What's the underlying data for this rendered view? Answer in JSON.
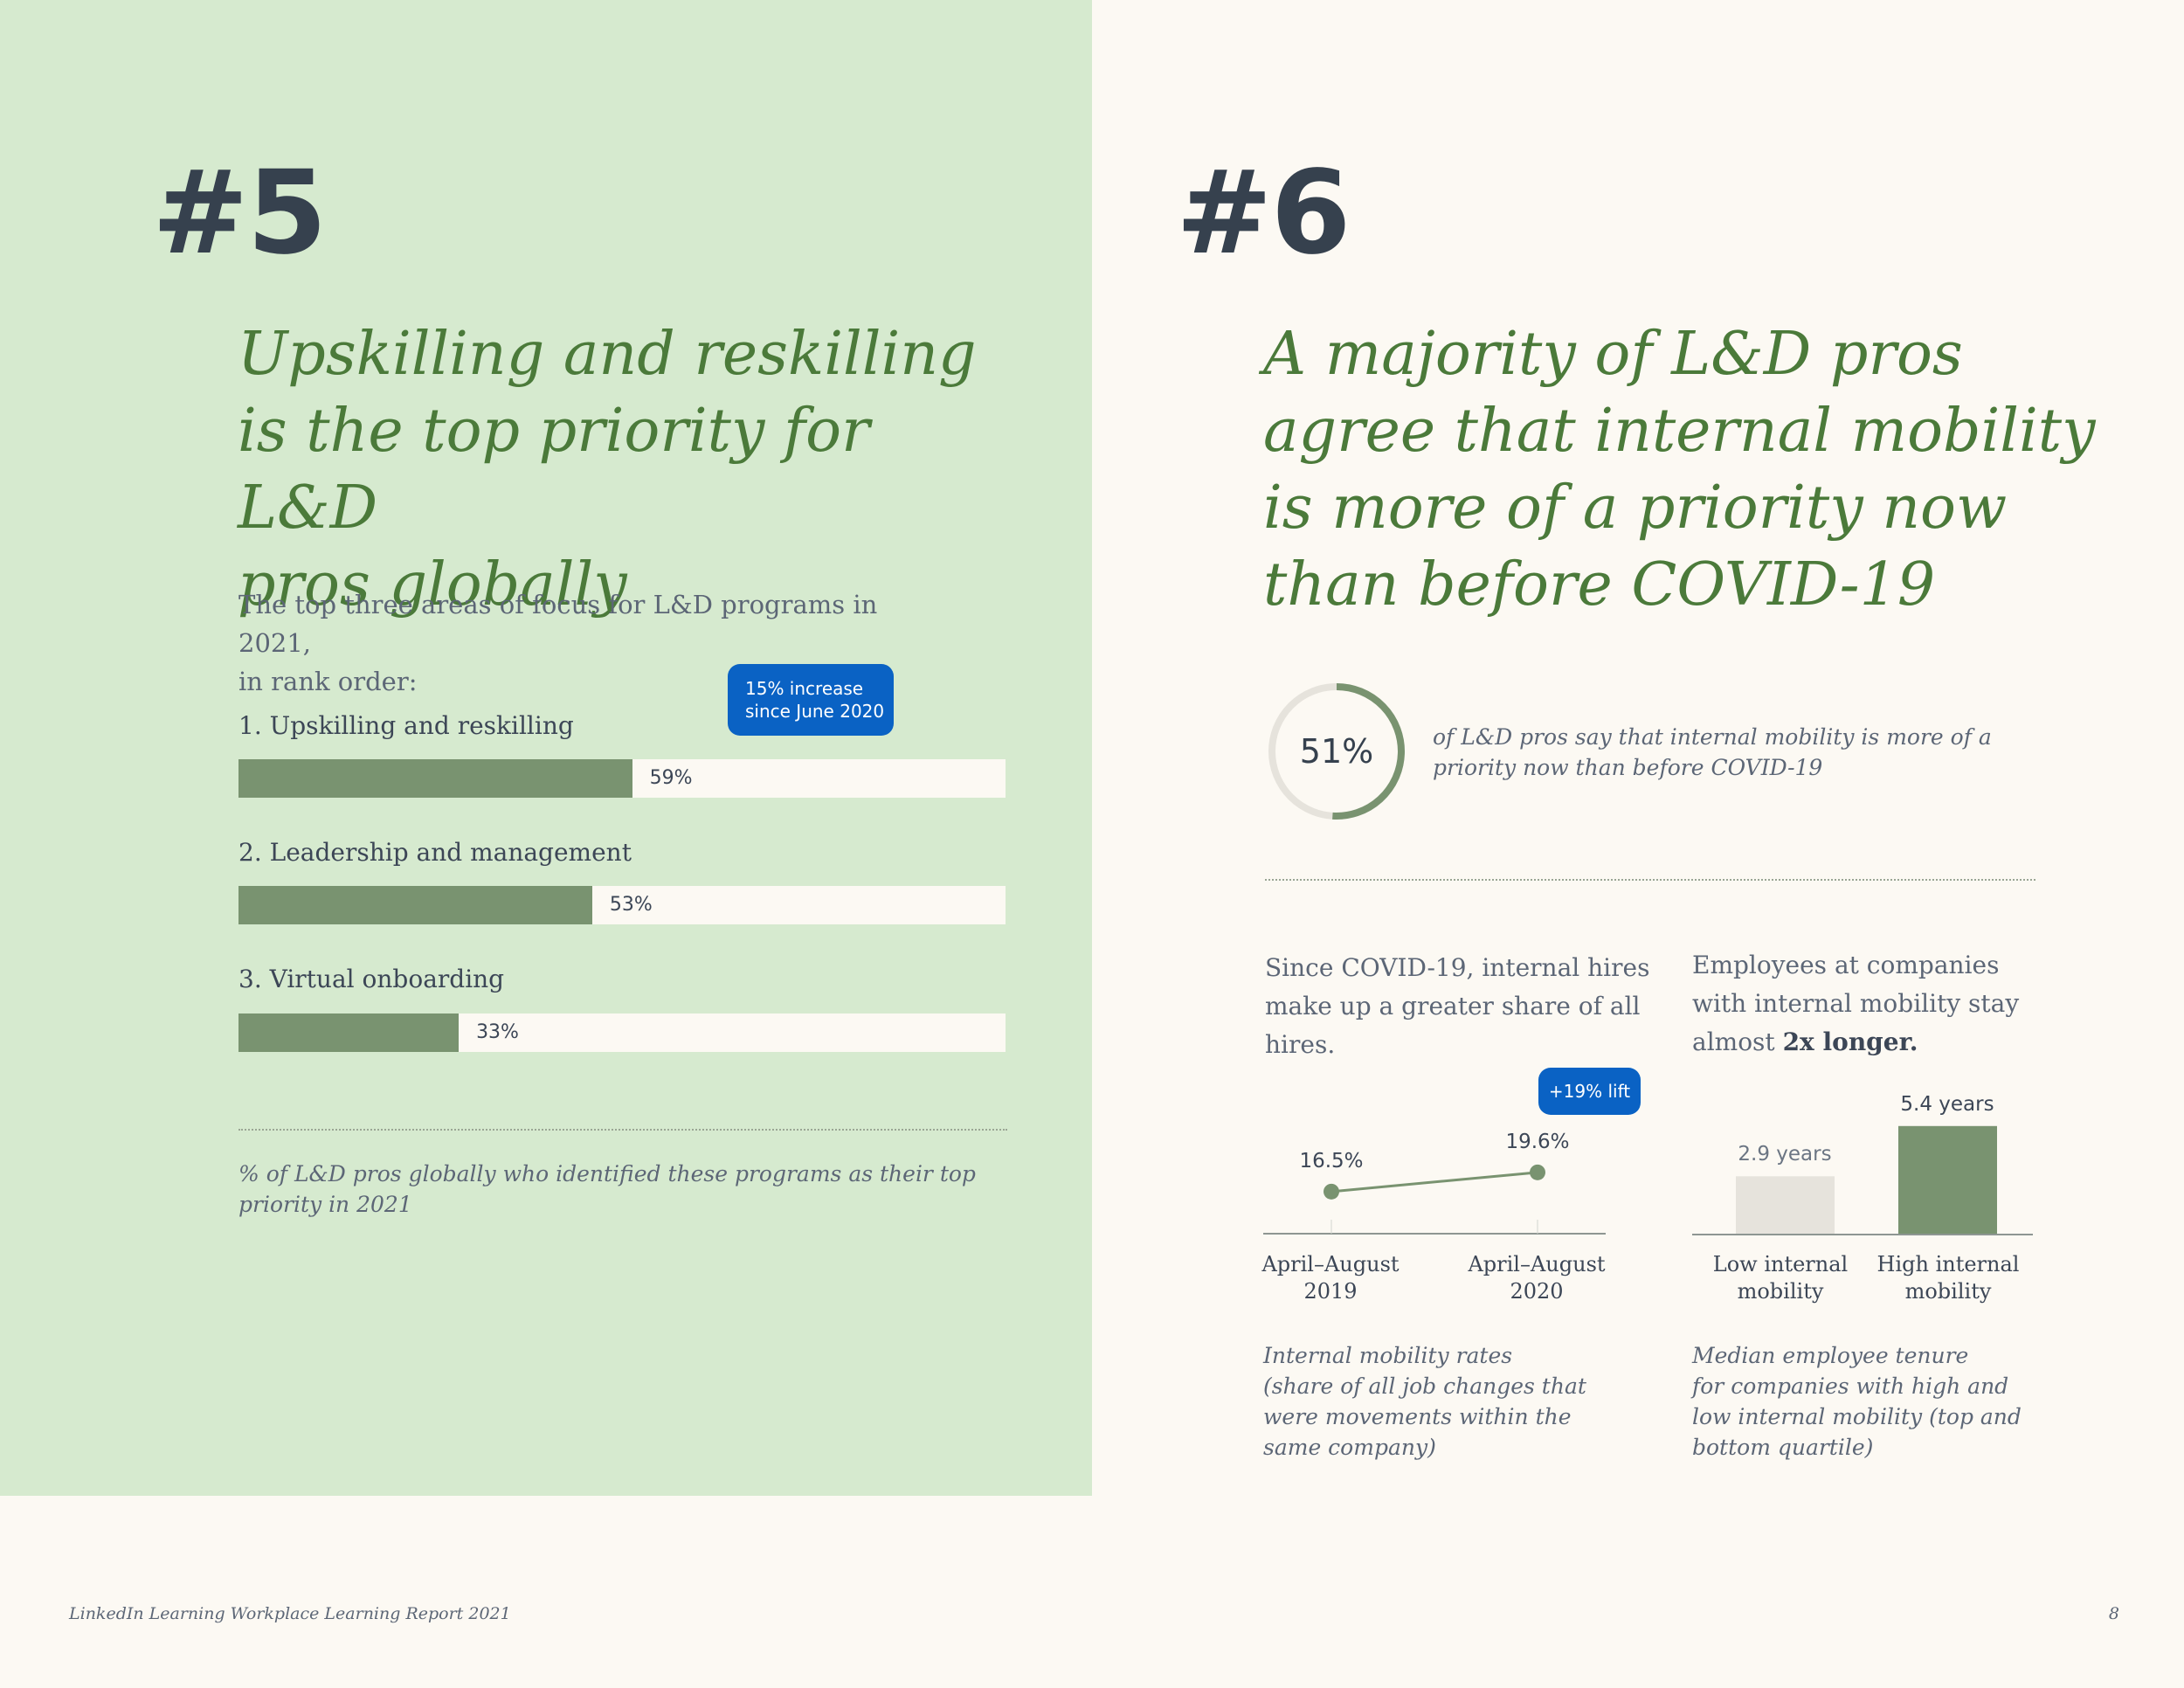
{
  "left": {
    "number": "#5",
    "headline": [
      "Upskilling and reskilling",
      "is the top priority for L&D",
      "pros globally"
    ],
    "intro": [
      "The top three areas of focus for L&D programs in 2021,",
      "in rank order:"
    ],
    "badge": [
      "15% increase",
      "since June 2020"
    ],
    "bars": [
      {
        "label": "1. Upskilling and reskilling",
        "value": 59,
        "pct": "59%"
      },
      {
        "label": "2. Leadership and management",
        "value": 53,
        "pct": "53%"
      },
      {
        "label": "3. Virtual onboarding",
        "value": 33,
        "pct": "33%"
      }
    ],
    "note": [
      "% of L&D pros globally who identified these programs as their top",
      "priority in 2021"
    ]
  },
  "right": {
    "number": "#6",
    "headline": [
      "A majority of L&D pros",
      "agree that internal mobility",
      "is more of a priority now",
      "than before COVID-19"
    ],
    "donut": {
      "value": 51,
      "label": "51%"
    },
    "donut_text": [
      "of L&D pros say that internal mobility is more of a",
      "priority now than before COVID-19"
    ],
    "hires_text": [
      "Since COVID-19, internal hires",
      "make up a greater share of all",
      "hires."
    ],
    "tenure_text": {
      "line1": "Employees at companies",
      "line2": "with internal mobility stay",
      "line3_a": "almost ",
      "line3_b": "2x longer."
    },
    "lift_badge": "+19% lift",
    "hires_note": [
      "Internal mobility rates",
      "(share of all job changes that",
      "were movements within the",
      "same company)"
    ],
    "tenure_note": [
      "Median employee tenure",
      "for companies with high and",
      "low internal mobility (top and",
      "bottom quartile)"
    ]
  },
  "chart_data": [
    {
      "type": "bar",
      "title": "The top three areas of focus for L&D programs in 2021",
      "categories": [
        "1. Upskilling and reskilling",
        "2. Leadership and management",
        "3. Virtual onboarding"
      ],
      "values": [
        59,
        53,
        33
      ],
      "xlim": [
        0,
        100
      ],
      "orientation": "horizontal"
    },
    {
      "type": "line",
      "title": "Internal mobility rates",
      "x": [
        [
          "April–August",
          "2019"
        ],
        [
          "April–August",
          "2020"
        ]
      ],
      "values": [
        16.5,
        19.6
      ],
      "value_labels": [
        "16.5%",
        "19.6%"
      ]
    },
    {
      "type": "bar",
      "title": "Median employee tenure",
      "categories": [
        [
          "Low internal",
          "mobility"
        ],
        [
          "High internal",
          "mobility"
        ]
      ],
      "values": [
        2.9,
        5.4
      ],
      "value_labels": [
        "2.9 years",
        "5.4 years"
      ],
      "colors": [
        "#e6e3dc",
        "#799370"
      ]
    }
  ],
  "footer": {
    "title": "LinkedIn Learning Workplace Learning Report 2021",
    "page": "8"
  }
}
